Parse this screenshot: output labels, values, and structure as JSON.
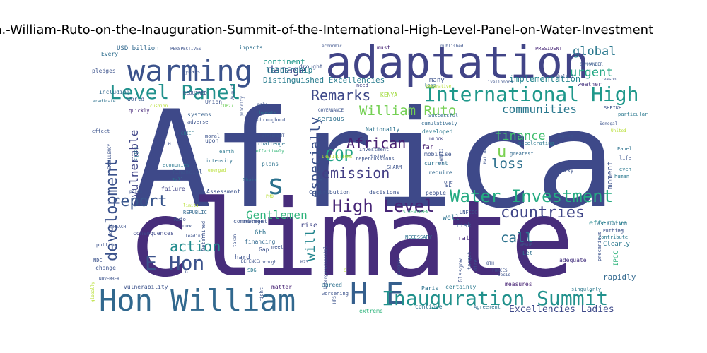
{
  "title": "H.E.-Hon.-William-Ruto-on-the-Inauguration-Summit-of-the-International-High-Level-Panel-on-Water-Investment",
  "colors": {
    "background": "#ffffff",
    "palette": [
      "#440154",
      "#482878",
      "#3e4989",
      "#31688e",
      "#26828e",
      "#1f9e89",
      "#35b779",
      "#6ece58",
      "#b5de2b"
    ]
  },
  "words": [
    {
      "text": "Africa",
      "size": 190,
      "color": "#3e4989"
    },
    {
      "text": "climate",
      "size": 150,
      "color": "#472d7b"
    },
    {
      "text": "adaptation",
      "size": 62,
      "color": "#414487"
    },
    {
      "text": "Hon William",
      "size": 42,
      "color": "#31688e"
    },
    {
      "text": "warming",
      "size": 42,
      "color": "#3b528b"
    },
    {
      "text": "H E",
      "size": 42,
      "color": "#355f8d"
    },
    {
      "text": "s",
      "size": 40,
      "color": "#2c728e"
    },
    {
      "text": "E Hon",
      "size": 28,
      "color": "#3b528b"
    },
    {
      "text": "Level Panel",
      "size": 28,
      "color": "#21918c"
    },
    {
      "text": "International High",
      "size": 28,
      "color": "#1f988b"
    },
    {
      "text": "Inauguration Summit",
      "size": 28,
      "color": "#21918c"
    },
    {
      "text": "High Level",
      "size": 24,
      "color": "#482677"
    },
    {
      "text": "Water Investment",
      "size": 24,
      "color": "#25ab82"
    },
    {
      "text": "report",
      "size": 22,
      "color": "#39568c"
    },
    {
      "text": "COP",
      "size": 22,
      "color": "#20a386"
    },
    {
      "text": "development",
      "size": 22,
      "color": "#3b528b"
    },
    {
      "text": "countries",
      "size": 22,
      "color": "#404688"
    },
    {
      "text": "action",
      "size": 20,
      "color": "#228c8d"
    },
    {
      "text": "emission",
      "size": 20,
      "color": "#433e85"
    },
    {
      "text": "African",
      "size": 20,
      "color": "#482071"
    },
    {
      "text": "Remarks",
      "size": 20,
      "color": "#3e4989"
    },
    {
      "text": "William Ruto",
      "size": 19,
      "color": "#75d054"
    },
    {
      "text": "loss",
      "size": 19,
      "color": "#2d708e"
    },
    {
      "text": "call",
      "size": 19,
      "color": "#2c728e"
    },
    {
      "text": "will",
      "size": 19,
      "color": "#24868e"
    },
    {
      "text": "especially",
      "size": 19,
      "color": "#3b528b"
    },
    {
      "text": "global",
      "size": 17,
      "color": "#2a788e"
    },
    {
      "text": "urgent",
      "size": 17,
      "color": "#22a884"
    },
    {
      "text": "finance",
      "size": 17,
      "color": "#44bf70"
    },
    {
      "text": "communities",
      "size": 16,
      "color": "#2a788e"
    },
    {
      "text": "Gentlemen",
      "size": 16,
      "color": "#2fb47c"
    },
    {
      "text": "vulnerable",
      "size": 16,
      "color": "#404688"
    },
    {
      "text": "damage",
      "size": 15,
      "color": "#3e4989"
    },
    {
      "text": "Excellencies Ladies",
      "size": 13,
      "color": "#3e4989"
    },
    {
      "text": "u",
      "size": 22,
      "color": "#7ad151"
    },
    {
      "text": "implementation",
      "size": 12,
      "color": "#25858e"
    },
    {
      "text": "Distinguished Excellencies",
      "size": 11,
      "color": "#287c8e"
    },
    {
      "text": "leadership",
      "size": 11,
      "color": "#27808e"
    },
    {
      "text": "continent",
      "size": 11,
      "color": "#1f988b"
    },
    {
      "text": "moment",
      "size": 11,
      "color": "#3b528b"
    },
    {
      "text": "rapidly",
      "size": 11,
      "color": "#31688e"
    },
    {
      "text": "Clearly",
      "size": 9,
      "color": "#2a788e"
    },
    {
      "text": "effective",
      "size": 10,
      "color": "#23898e"
    },
    {
      "text": "USD billion",
      "size": 9,
      "color": "#31688e"
    },
    {
      "text": "impacts",
      "size": 8,
      "color": "#2e6f8e"
    },
    {
      "text": "must",
      "size": 8,
      "color": "#482878"
    },
    {
      "text": "weather",
      "size": 8,
      "color": "#46327e"
    },
    {
      "text": "pledges",
      "size": 8,
      "color": "#3b528b"
    },
    {
      "text": "Every",
      "size": 8,
      "color": "#2e6e8e"
    },
    {
      "text": "including",
      "size": 8,
      "color": "#31688e"
    },
    {
      "text": "world",
      "size": 8,
      "color": "#38598c"
    },
    {
      "text": "many",
      "size": 9,
      "color": "#3b528b"
    },
    {
      "text": "KENYA",
      "size": 8,
      "color": "#9fda3a"
    },
    {
      "text": "serious",
      "size": 9,
      "color": "#2d708e"
    },
    {
      "text": "threats",
      "size": 7,
      "color": "#2a788e"
    },
    {
      "text": "drought",
      "size": 8,
      "color": "#3b528b"
    },
    {
      "text": "need",
      "size": 7,
      "color": "#414487"
    },
    {
      "text": "far",
      "size": 9,
      "color": "#481f70"
    },
    {
      "text": "loss",
      "size": 7,
      "color": "#2d708e"
    },
    {
      "text": "mobilise",
      "size": 8,
      "color": "#3b528b"
    },
    {
      "text": "current",
      "size": 8,
      "color": "#2c728e"
    },
    {
      "text": "require",
      "size": 8,
      "color": "#31688e"
    },
    {
      "text": "well",
      "size": 10,
      "color": "#2c728e"
    },
    {
      "text": "risk",
      "size": 9,
      "color": "#3b528b"
    },
    {
      "text": "rate",
      "size": 9,
      "color": "#472d7b"
    },
    {
      "text": "Let",
      "size": 8,
      "color": "#2d708e"
    },
    {
      "text": "adequate",
      "size": 8,
      "color": "#46337f"
    },
    {
      "text": "measures",
      "size": 8,
      "color": "#482475"
    },
    {
      "text": "certainly",
      "size": 8,
      "color": "#2a788e"
    },
    {
      "text": "Agreement",
      "size": 7,
      "color": "#2e6e8e"
    },
    {
      "text": "continue",
      "size": 8,
      "color": "#2c728e"
    },
    {
      "text": "extreme",
      "size": 8,
      "color": "#2fb47c"
    },
    {
      "text": "agreed",
      "size": 8,
      "color": "#2d708e"
    },
    {
      "text": "worsening",
      "size": 7,
      "color": "#3b528b"
    },
    {
      "text": "matter",
      "size": 8,
      "color": "#482475"
    },
    {
      "text": "vulnerability",
      "size": 8,
      "color": "#3b528b"
    },
    {
      "text": "change",
      "size": 8,
      "color": "#3b528b"
    },
    {
      "text": "SDG",
      "size": 7,
      "color": "#2a788e"
    },
    {
      "text": "hard",
      "size": 9,
      "color": "#3b528b"
    },
    {
      "text": "financing",
      "size": 8,
      "color": "#31688e"
    },
    {
      "text": "6th",
      "size": 9,
      "color": "#2c728e"
    },
    {
      "text": "rise",
      "size": 10,
      "color": "#404688"
    },
    {
      "text": "commitment",
      "size": 8,
      "color": "#3b528b"
    },
    {
      "text": "consequences",
      "size": 8,
      "color": "#3e4989"
    },
    {
      "text": "REPUBLIC",
      "size": 7,
      "color": "#31688e"
    },
    {
      "text": "Contribution",
      "size": 8,
      "color": "#3b528b"
    },
    {
      "text": "decisions",
      "size": 8,
      "color": "#3b528b"
    },
    {
      "text": "people",
      "size": 8,
      "color": "#3b528b"
    },
    {
      "text": "Assessment",
      "size": 8,
      "color": "#3b528b"
    },
    {
      "text": "failure",
      "size": 8,
      "color": "#414487"
    },
    {
      "text": "Sall",
      "size": 7,
      "color": "#2a788e"
    },
    {
      "text": "Chair",
      "size": 7,
      "color": "#2e6e8e"
    },
    {
      "text": "economies",
      "size": 7,
      "color": "#2a788e"
    },
    {
      "text": "financial",
      "size": 8,
      "color": "#3b528b"
    },
    {
      "text": "plans",
      "size": 8,
      "color": "#2c728e"
    },
    {
      "text": "intensity",
      "size": 7,
      "color": "#2d708e"
    },
    {
      "text": "earth",
      "size": 7,
      "color": "#2a788e"
    },
    {
      "text": "upon",
      "size": 8,
      "color": "#3b528b"
    },
    {
      "text": "systems",
      "size": 8,
      "color": "#35608d"
    },
    {
      "text": "quickly",
      "size": 7,
      "color": "#482878"
    },
    {
      "text": "effect",
      "size": 7,
      "color": "#3b528b"
    },
    {
      "text": "falls",
      "size": 7,
      "color": "#2c728e"
    },
    {
      "text": "Union",
      "size": 8,
      "color": "#3b528b"
    },
    {
      "text": "developed",
      "size": 8,
      "color": "#2a788e"
    },
    {
      "text": "Nationally",
      "size": 8,
      "color": "#2c728e"
    },
    {
      "text": "Successful",
      "size": 7,
      "color": "#31688e"
    },
    {
      "text": "UNLOCK",
      "size": 6,
      "color": "#414487"
    },
    {
      "text": "PRESIDENT",
      "size": 7,
      "color": "#482878"
    },
    {
      "text": "COMMANDER",
      "size": 6,
      "color": "#38598c"
    },
    {
      "text": "Panel",
      "size": 7,
      "color": "#2c728e"
    },
    {
      "text": "life",
      "size": 7,
      "color": "#3b528b"
    },
    {
      "text": "even",
      "size": 7,
      "color": "#2a788e"
    },
    {
      "text": "human",
      "size": 7,
      "color": "#2a788e"
    },
    {
      "text": "thing",
      "size": 7,
      "color": "#3b528b"
    },
    {
      "text": "contribute",
      "size": 7,
      "color": "#2a788e"
    },
    {
      "text": "particular",
      "size": 7,
      "color": "#2a788e"
    },
    {
      "text": "escalation",
      "size": 7,
      "color": "#2d708e"
    },
    {
      "text": "POLICIES",
      "size": 6,
      "color": "#3b528b"
    },
    {
      "text": "IPCC",
      "size": 9,
      "color": "#2fb47c"
    },
    {
      "text": "Glasgow",
      "size": 8,
      "color": "#3b528b"
    },
    {
      "text": "singularly",
      "size": 7,
      "color": "#2a788e"
    },
    {
      "text": "cumulatively",
      "size": 7,
      "color": "#31688e"
    },
    {
      "text": "greatest",
      "size": 7,
      "color": "#31688e"
    },
    {
      "text": "accelerating",
      "size": 7,
      "color": "#2a788e"
    },
    {
      "text": "EGYPT",
      "size": 7,
      "color": "#3b528b"
    },
    {
      "text": "Macky",
      "size": 7,
      "color": "#3b528b"
    },
    {
      "text": "PERSPECTIVES",
      "size": 6,
      "color": "#3b528b"
    },
    {
      "text": "economic",
      "size": 6,
      "color": "#3b528b"
    },
    {
      "text": "published",
      "size": 6,
      "color": "#3b528b"
    },
    {
      "text": "livelihoods",
      "size": 6,
      "color": "#3b528b"
    },
    {
      "text": "overwhelmed",
      "size": 6,
      "color": "#3b528b"
    },
    {
      "text": "reason",
      "size": 6,
      "color": "#3b528b"
    },
    {
      "text": "REQUIRED",
      "size": 7,
      "color": "#3b528b"
    },
    {
      "text": "eradicate",
      "size": 6,
      "color": "#2c728e"
    },
    {
      "text": "cushion",
      "size": 6,
      "color": "#b5de2b"
    },
    {
      "text": "COP27",
      "size": 6,
      "color": "#6ece58"
    },
    {
      "text": "adverse",
      "size": 7,
      "color": "#3b528b"
    },
    {
      "text": "CHIEF",
      "size": 6,
      "color": "#2a788e"
    },
    {
      "text": "STATEMENT",
      "size": 6,
      "color": "#3b528b"
    },
    {
      "text": "challenge",
      "size": 7,
      "color": "#2c728e"
    },
    {
      "text": "effectively",
      "size": 6,
      "color": "#35b779"
    },
    {
      "text": "Investment",
      "size": 7,
      "color": "#3b528b"
    },
    {
      "text": "repercussions",
      "size": 7,
      "color": "#3b528b"
    },
    {
      "text": "INSTITUTIONS",
      "size": 6,
      "color": "#b5de2b"
    },
    {
      "text": "SHARM",
      "size": 7,
      "color": "#3b528b"
    },
    {
      "text": "EL",
      "size": 7,
      "color": "#3b528b"
    },
    {
      "text": "UNFCCC",
      "size": 7,
      "color": "#3b528b"
    },
    {
      "text": "STRENGTHEN",
      "size": 6,
      "color": "#35b779"
    },
    {
      "text": "NECESSARY",
      "size": 7,
      "color": "#2c728e"
    },
    {
      "text": "VENUE",
      "size": 6,
      "color": "#3b528b"
    },
    {
      "text": "8TH",
      "size": 6,
      "color": "#3b528b"
    },
    {
      "text": "FORCES",
      "size": 6,
      "color": "#3b528b"
    },
    {
      "text": "DEFENCE",
      "size": 6,
      "color": "#3b528b"
    },
    {
      "text": "M23",
      "size": 6,
      "color": "#3b528b"
    },
    {
      "text": "moral",
      "size": 7,
      "color": "#3b528b"
    },
    {
      "text": "Gap",
      "size": 8,
      "color": "#3b528b"
    },
    {
      "text": "meet",
      "size": 7,
      "color": "#3b528b"
    },
    {
      "text": "average",
      "size": 7,
      "color": "#3b528b"
    },
    {
      "text": "Determined",
      "size": 7,
      "color": "#3b528b"
    },
    {
      "text": "leading",
      "size": 6,
      "color": "#3b528b"
    },
    {
      "text": "REACH",
      "size": 6,
      "color": "#3b528b"
    },
    {
      "text": "putting",
      "size": 7,
      "color": "#3b528b"
    },
    {
      "text": "NDC",
      "size": 7,
      "color": "#3b528b"
    },
    {
      "text": "NOVEMBER",
      "size": 6,
      "color": "#3b528b"
    },
    {
      "text": "Ruto",
      "size": 7,
      "color": "#3b528b"
    },
    {
      "text": "limits",
      "size": 6,
      "color": "#b5de2b"
    },
    {
      "text": "poses",
      "size": 6,
      "color": "#3b528b"
    },
    {
      "text": "emerged",
      "size": 6,
      "color": "#b5de2b"
    },
    {
      "text": "GOVERNANCE",
      "size": 6,
      "color": "#3b528b"
    },
    {
      "text": "imperative",
      "size": 6,
      "color": "#b5de2b"
    },
    {
      "text": "SHEIKH",
      "size": 7,
      "color": "#3b528b"
    },
    {
      "text": "United",
      "size": 6,
      "color": "#b5de2b"
    },
    {
      "text": "Senegal",
      "size": 6,
      "color": "#3b528b"
    },
    {
      "text": "precarious",
      "size": 7,
      "color": "#3b528b"
    },
    {
      "text": "through",
      "size": 6,
      "color": "#3b528b"
    },
    {
      "text": "throughout",
      "size": 7,
      "color": "#3b528b"
    },
    {
      "text": "taken",
      "size": 6,
      "color": "#3b528b"
    },
    {
      "text": "now",
      "size": 7,
      "color": "#3b528b"
    },
    {
      "text": "Paris",
      "size": 8,
      "color": "#2c728e"
    },
    {
      "text": "one",
      "size": 7,
      "color": "#3b528b"
    },
    {
      "text": "Hosted",
      "size": 6,
      "color": "#3b528b"
    },
    {
      "text": "make",
      "size": 6,
      "color": "#3b528b"
    },
    {
      "text": "years",
      "size": 7,
      "color": "#3b528b"
    },
    {
      "text": "priority",
      "size": 6,
      "color": "#3b528b"
    },
    {
      "text": "August",
      "size": 6,
      "color": "#3b528b"
    },
    {
      "text": "SANDEI",
      "size": 6,
      "color": "#3b528b"
    },
    {
      "text": "Nations",
      "size": 6,
      "color": "#3b528b"
    },
    {
      "text": "target",
      "size": 7,
      "color": "#3b528b"
    },
    {
      "text": "dire",
      "size": 7,
      "color": "#3b528b"
    },
    {
      "text": "socio",
      "size": 6,
      "color": "#3b528b"
    },
    {
      "text": "singled",
      "size": 6,
      "color": "#3b528b"
    },
    {
      "text": "intergovernmental",
      "size": 6,
      "color": "#3b528b"
    },
    {
      "text": "worst",
      "size": 6,
      "color": "#3b528b"
    },
    {
      "text": "globally",
      "size": 6,
      "color": "#b5de2b"
    },
    {
      "text": "right",
      "size": 7,
      "color": "#3b528b"
    },
    {
      "text": "EXCELLENCY",
      "size": 6,
      "color": "#3b528b"
    },
    {
      "text": "HRS",
      "size": 6,
      "color": "#3b528b"
    },
    {
      "text": "G",
      "size": 6,
      "color": "#3b528b"
    },
    {
      "text": "H",
      "size": 6,
      "color": "#3b528b"
    },
    {
      "text": "C",
      "size": 6,
      "color": "#b5de2b"
    },
    {
      "text": "PMO",
      "size": 6,
      "color": "#b5de2b"
    }
  ]
}
